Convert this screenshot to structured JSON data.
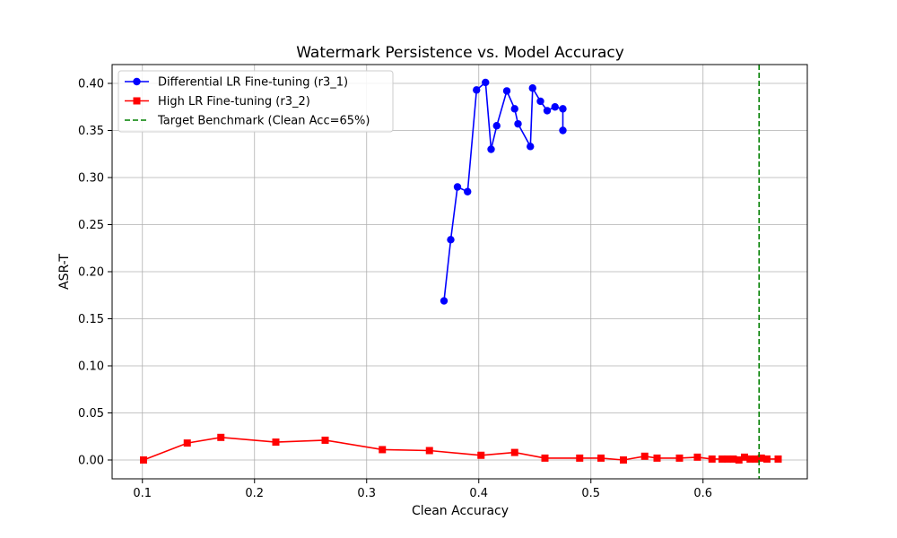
{
  "chart_data": {
    "type": "line",
    "title": "Watermark Persistence vs. Model Accuracy",
    "xlabel": "Clean Accuracy",
    "ylabel": "ASR-T",
    "xlim": [
      0.073,
      0.693
    ],
    "ylim": [
      -0.02,
      0.42
    ],
    "grid": true,
    "legend_position": "top-left",
    "x_ticks": [
      0.1,
      0.2,
      0.3,
      0.4,
      0.5,
      0.6
    ],
    "x_tick_labels": [
      "0.1",
      "0.2",
      "0.3",
      "0.4",
      "0.5",
      "0.6"
    ],
    "y_ticks": [
      0.0,
      0.05,
      0.1,
      0.15,
      0.2,
      0.25,
      0.3,
      0.35,
      0.4
    ],
    "y_tick_labels": [
      "0.00",
      "0.05",
      "0.10",
      "0.15",
      "0.20",
      "0.25",
      "0.30",
      "0.35",
      "0.40"
    ],
    "series": [
      {
        "name": "Differential LR Fine-tuning (r3_1)",
        "color": "#0000ff",
        "marker": "circle",
        "x": [
          0.369,
          0.375,
          0.381,
          0.39,
          0.398,
          0.406,
          0.411,
          0.416,
          0.425,
          0.432,
          0.435,
          0.446,
          0.448,
          0.455,
          0.461,
          0.468,
          0.475,
          0.475
        ],
        "y": [
          0.169,
          0.234,
          0.29,
          0.285,
          0.393,
          0.401,
          0.33,
          0.355,
          0.392,
          0.373,
          0.357,
          0.333,
          0.395,
          0.381,
          0.371,
          0.375,
          0.373,
          0.35
        ]
      },
      {
        "name": "High LR Fine-tuning (r3_2)",
        "color": "#ff0000",
        "marker": "square",
        "x": [
          0.101,
          0.14,
          0.17,
          0.219,
          0.263,
          0.314,
          0.356,
          0.402,
          0.432,
          0.459,
          0.49,
          0.509,
          0.529,
          0.548,
          0.559,
          0.579,
          0.595,
          0.608,
          0.617,
          0.622,
          0.627,
          0.632,
          0.637,
          0.642,
          0.647,
          0.652,
          0.657,
          0.667
        ],
        "y": [
          0.0,
          0.018,
          0.024,
          0.019,
          0.021,
          0.011,
          0.01,
          0.005,
          0.008,
          0.002,
          0.002,
          0.002,
          0.0,
          0.004,
          0.002,
          0.002,
          0.003,
          0.001,
          0.001,
          0.001,
          0.001,
          0.0,
          0.003,
          0.001,
          0.001,
          0.002,
          0.001,
          0.001
        ]
      }
    ],
    "reference_lines": [
      {
        "name": "Target Benchmark (Clean Acc=65%)",
        "orientation": "vertical",
        "x": 0.65,
        "color": "#008000",
        "style": "dashed"
      }
    ]
  }
}
